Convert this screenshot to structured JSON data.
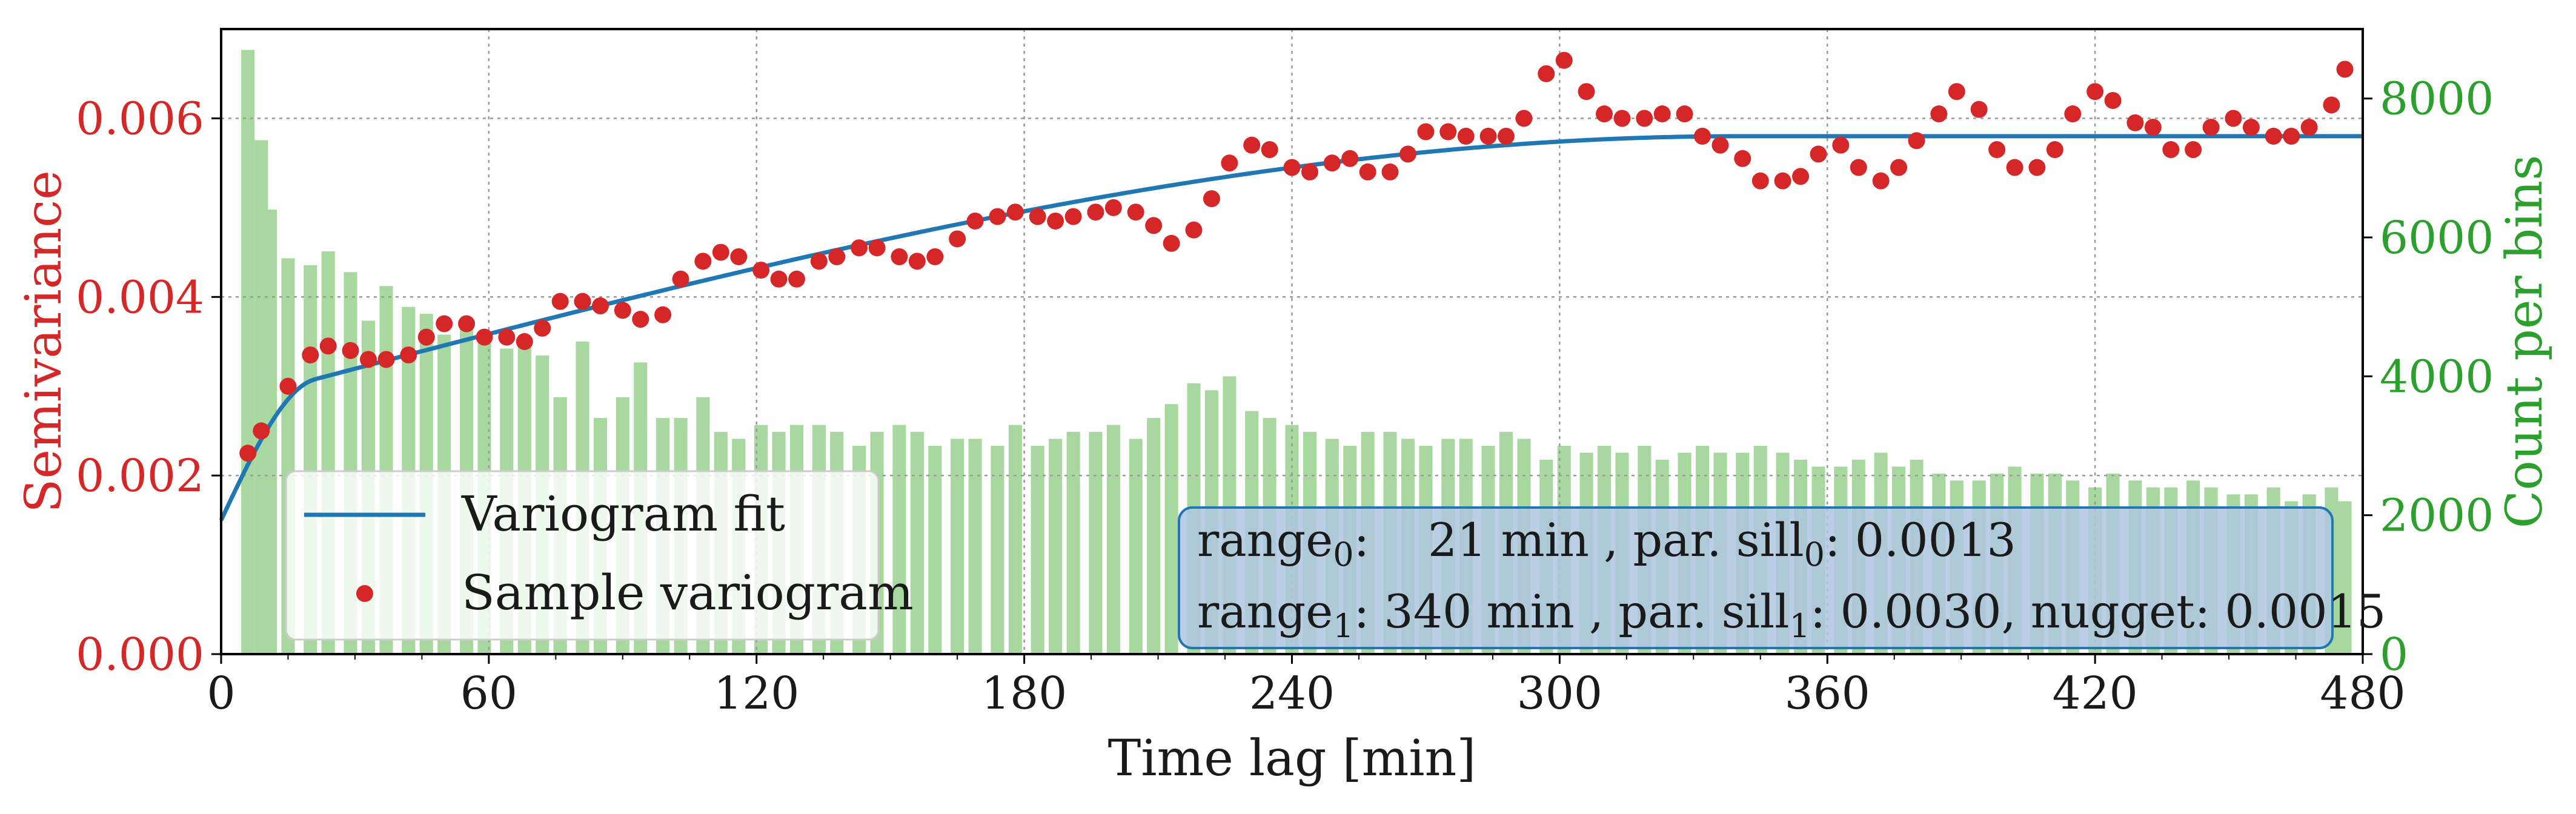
{
  "chart_data": {
    "type": "bar+scatter+line",
    "title": "",
    "xlabel": "Time lag [min]",
    "ylabel_left": "Semivariance",
    "ylabel_right": "Count per bins",
    "xlim": [
      0,
      480
    ],
    "ylim_left": [
      0,
      0.007
    ],
    "ylim_right": [
      0,
      9000
    ],
    "x_ticks": [
      0,
      60,
      120,
      180,
      240,
      300,
      360,
      420,
      480
    ],
    "x_tick_labels": [
      "0",
      "60",
      "120",
      "180",
      "240",
      "300",
      "360",
      "420",
      "480"
    ],
    "y_left_ticks": [
      0,
      0.002,
      0.004,
      0.006
    ],
    "y_left_tick_labels": [
      "0.000",
      "0.002",
      "0.004",
      "0.006"
    ],
    "y_right_ticks": [
      0,
      2000,
      4000,
      6000,
      8000
    ],
    "y_right_tick_labels": [
      "0",
      "2000",
      "4000",
      "6000",
      "8000"
    ],
    "grid": true,
    "legend_position": "bottom-left",
    "colors": {
      "variogram_fit": "#1f77b4",
      "sample_variogram": "#d62728",
      "counts": "#a8d8a0",
      "left_axis": "#d62728",
      "right_axis": "#2ca02c",
      "info_box_fill": "#aec7e0",
      "info_box_edge": "#1f77b4"
    },
    "series": [
      {
        "name": "Variogram fit",
        "kind": "line",
        "model": "double-spherical",
        "nugget": 0.0015,
        "components": [
          {
            "range": 21,
            "sill": 0.0013
          },
          {
            "range": 340,
            "sill": 0.003
          }
        ]
      },
      {
        "name": "Sample variogram",
        "kind": "scatter",
        "x": [
          6,
          9,
          15,
          20,
          24,
          29,
          33,
          37,
          42,
          46,
          50,
          55,
          59,
          64,
          68,
          72,
          76,
          81,
          85,
          90,
          94,
          99,
          103,
          108,
          112,
          116,
          121,
          125,
          129,
          134,
          138,
          143,
          147,
          152,
          156,
          160,
          165,
          169,
          174,
          178,
          183,
          187,
          191,
          196,
          200,
          205,
          209,
          213,
          218,
          222,
          226,
          231,
          235,
          240,
          244,
          249,
          253,
          257,
          262,
          266,
          270,
          275,
          279,
          284,
          288,
          292,
          297,
          301,
          306,
          310,
          314,
          319,
          323,
          328,
          332,
          336,
          341,
          345,
          350,
          354,
          358,
          363,
          367,
          372,
          376,
          380,
          385,
          389,
          394,
          398,
          402,
          407,
          411,
          415,
          420,
          424,
          429,
          433,
          437,
          442,
          446,
          451,
          455,
          460,
          464,
          468,
          473,
          476
        ],
        "values": [
          0.00225,
          0.0025,
          0.003,
          0.00335,
          0.00345,
          0.0034,
          0.0033,
          0.0033,
          0.00335,
          0.00355,
          0.0037,
          0.0037,
          0.00355,
          0.00355,
          0.0035,
          0.00365,
          0.00395,
          0.00395,
          0.0039,
          0.00385,
          0.00375,
          0.0038,
          0.0042,
          0.0044,
          0.0045,
          0.00445,
          0.0043,
          0.0042,
          0.0042,
          0.0044,
          0.00445,
          0.00455,
          0.00455,
          0.00445,
          0.0044,
          0.00445,
          0.00465,
          0.00485,
          0.0049,
          0.00495,
          0.0049,
          0.00485,
          0.0049,
          0.00495,
          0.005,
          0.00495,
          0.0048,
          0.0046,
          0.00475,
          0.0051,
          0.0055,
          0.0057,
          0.00565,
          0.00545,
          0.0054,
          0.0055,
          0.00555,
          0.0054,
          0.0054,
          0.0056,
          0.00585,
          0.00585,
          0.0058,
          0.0058,
          0.0058,
          0.006,
          0.0065,
          0.00665,
          0.0063,
          0.00605,
          0.006,
          0.006,
          0.00605,
          0.00605,
          0.0058,
          0.0057,
          0.00555,
          0.0053,
          0.0053,
          0.00535,
          0.0056,
          0.0057,
          0.00545,
          0.0053,
          0.00545,
          0.00575,
          0.00605,
          0.0063,
          0.0061,
          0.00565,
          0.00545,
          0.00545,
          0.00565,
          0.00605,
          0.0063,
          0.0062,
          0.00595,
          0.0059,
          0.00565,
          0.00565,
          0.0059,
          0.006,
          0.0059,
          0.0058,
          0.0058,
          0.0059,
          0.00615,
          0.00655
        ]
      },
      {
        "name": "Count per bins",
        "kind": "bar",
        "x": [
          6,
          9,
          11,
          15,
          20,
          24,
          29,
          33,
          37,
          42,
          46,
          50,
          55,
          59,
          64,
          68,
          72,
          76,
          81,
          85,
          90,
          94,
          99,
          103,
          108,
          112,
          116,
          121,
          125,
          129,
          134,
          138,
          143,
          147,
          152,
          156,
          160,
          165,
          169,
          174,
          178,
          183,
          187,
          191,
          196,
          200,
          205,
          209,
          213,
          218,
          222,
          226,
          231,
          235,
          240,
          244,
          249,
          253,
          257,
          262,
          266,
          270,
          275,
          279,
          284,
          288,
          292,
          297,
          301,
          306,
          310,
          314,
          319,
          323,
          328,
          332,
          336,
          341,
          345,
          350,
          354,
          358,
          363,
          367,
          372,
          376,
          380,
          385,
          389,
          394,
          398,
          402,
          407,
          411,
          415,
          420,
          424,
          429,
          433,
          437,
          442,
          446,
          451,
          455,
          460,
          464,
          468,
          473,
          476
        ],
        "values": [
          8700,
          7400,
          6400,
          5700,
          5600,
          5800,
          5500,
          4800,
          5300,
          5000,
          4900,
          4600,
          4700,
          4600,
          4400,
          4500,
          4300,
          3700,
          4500,
          3400,
          3700,
          4200,
          3400,
          3400,
          3700,
          3200,
          3100,
          3300,
          3200,
          3300,
          3300,
          3200,
          3000,
          3200,
          3300,
          3200,
          3000,
          3100,
          3100,
          3000,
          3300,
          3000,
          3100,
          3200,
          3200,
          3300,
          3100,
          3400,
          3600,
          3900,
          3800,
          4000,
          3500,
          3400,
          3300,
          3200,
          3100,
          3000,
          3200,
          3200,
          3100,
          3000,
          3100,
          3100,
          3000,
          3200,
          3100,
          2800,
          3000,
          2900,
          3000,
          2900,
          3000,
          2800,
          2900,
          3000,
          2900,
          2900,
          3000,
          2900,
          2800,
          2700,
          2700,
          2800,
          2900,
          2700,
          2800,
          2600,
          2500,
          2500,
          2600,
          2700,
          2600,
          2600,
          2500,
          2400,
          2600,
          2500,
          2400,
          2400,
          2500,
          2400,
          2300,
          2300,
          2400,
          2200,
          2300,
          2400,
          2200
        ]
      }
    ]
  },
  "info_box": {
    "line1_pre": "range",
    "line1_sub": "0",
    "line1_post": ":    21 min , par. sill",
    "line1_sub2": "0",
    "line1_end": ": 0.0013",
    "line2_pre": "range",
    "line2_sub": "1",
    "line2_post": ": 340 min , par. sill",
    "line2_sub2": "1",
    "line2_end": ": 0.0030, nugget: 0.0015"
  }
}
